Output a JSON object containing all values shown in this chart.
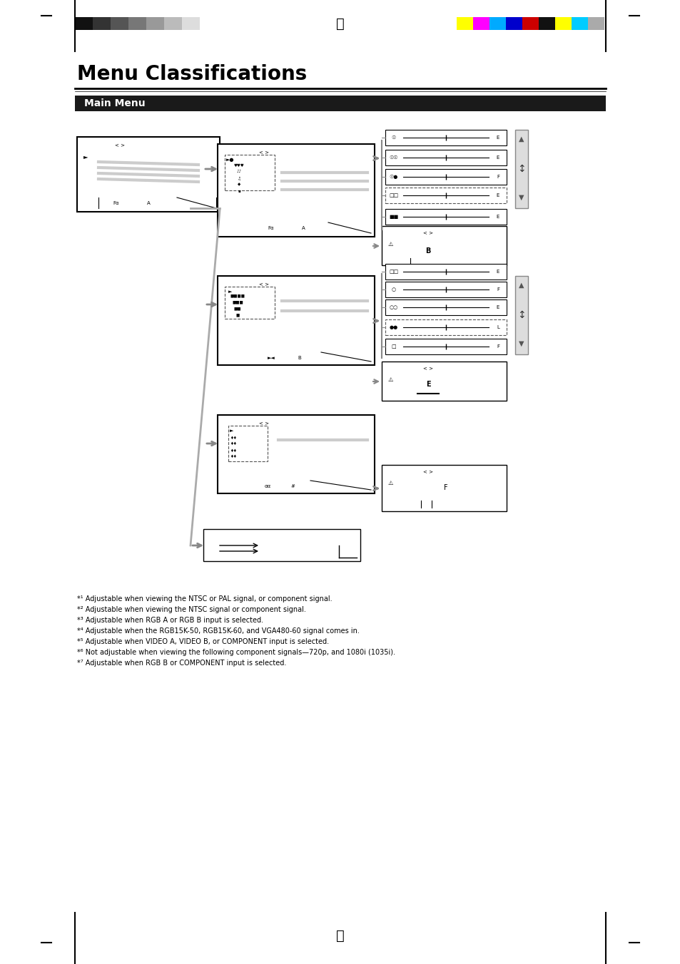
{
  "title": "Menu Classifications",
  "section_title": "Main Menu",
  "bg_color": "#ffffff",
  "title_color": "#000000",
  "section_bg": "#1a1a1a",
  "section_text_color": "#ffffff",
  "line_color": "#000000",
  "gray_line_color": "#aaaaaa",
  "dashed_color": "#555555",
  "footnotes": [
    "*¹ Adjustable when viewing the NTSC or PAL signal, or component signal.",
    "*² Adjustable when viewing the NTSC signal or component signal.",
    "*³ Adjustable when RGB A or RGB B input is selected.",
    "*⁴ Adjustable when the RGB15K-50, RGB15K-60, and VGA480-60 signal comes in.",
    "*⁵ Adjustable when VIDEO A, VIDEO B, or COMPONENT input is selected.",
    "*⁶ Not adjustable when viewing the following component signals—720p, and 1080i (1035i).",
    "*⁷ Adjustable when RGB B or COMPONENT input is selected."
  ],
  "colorbar_left": [
    "#111111",
    "#333333",
    "#555555",
    "#777777",
    "#999999",
    "#bbbbbb",
    "#dddddd",
    "#ffffff"
  ],
  "colorbar_right": [
    "#ffff00",
    "#ff00ff",
    "#00aaff",
    "#0000cc",
    "#cc0000",
    "#111111",
    "#ffff00",
    "#00ccff",
    "#aaaaaa"
  ]
}
